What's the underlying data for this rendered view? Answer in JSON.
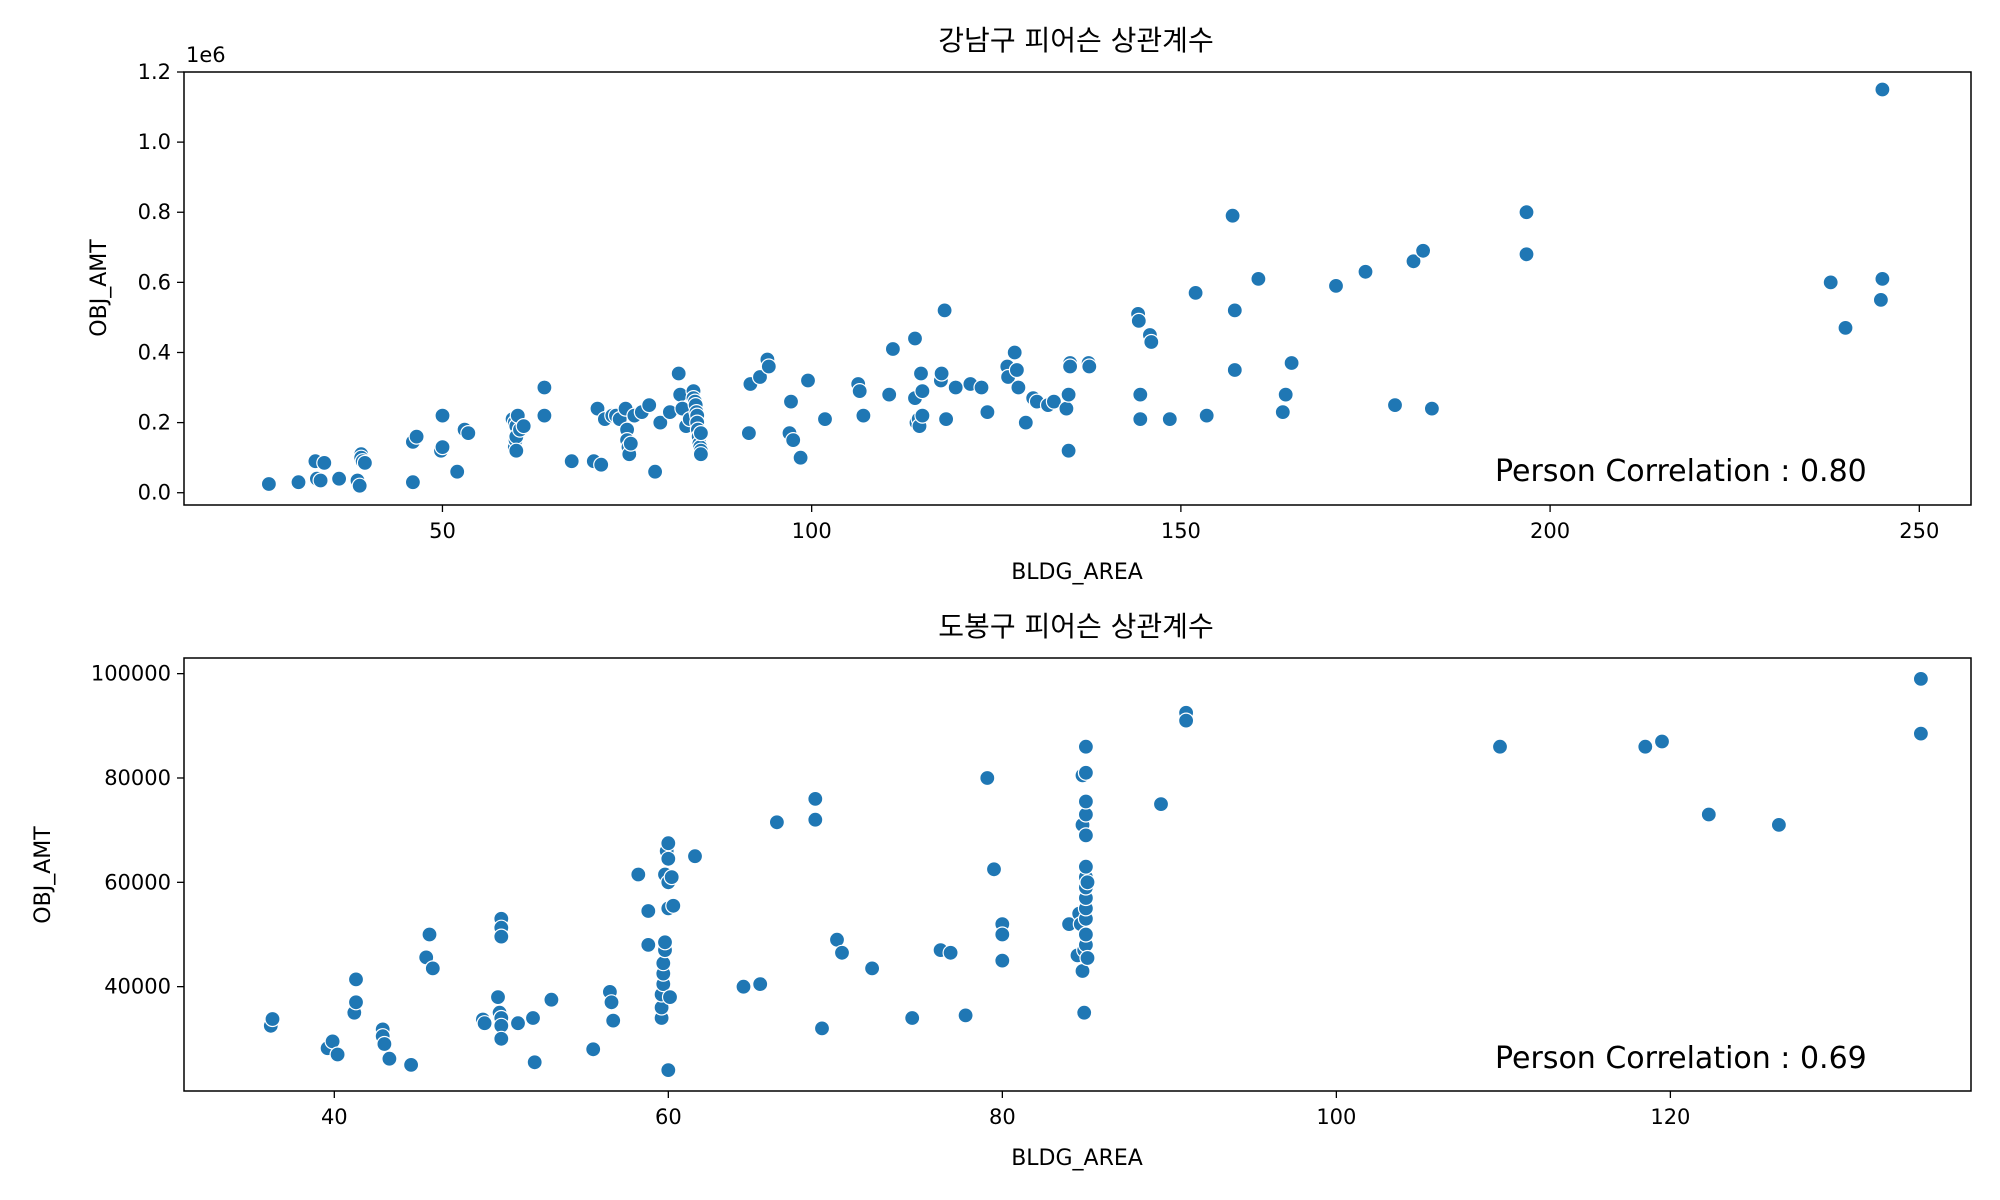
{
  "chart_data": [
    {
      "type": "scatter",
      "title": "강남구 피어슨 상관계수",
      "xlabel": "BLDG_AREA",
      "ylabel": "OBJ_AMT",
      "offset_label": "1e6",
      "annotation": "Person Correlation : 0.80",
      "xlim": [
        15,
        257
      ],
      "ylim": [
        -0.035,
        1.2
      ],
      "xticks": [
        50,
        100,
        150,
        200,
        250
      ],
      "xtick_labels": [
        "50",
        "100",
        "150",
        "200",
        "250"
      ],
      "yticks": [
        0.0,
        0.2,
        0.4,
        0.6,
        0.8,
        1.0,
        1.2
      ],
      "ytick_labels": [
        "0.0",
        "0.2",
        "0.4",
        "0.6",
        "0.8",
        "1.0",
        "1.2"
      ],
      "grid": false,
      "color": "#1f77b4",
      "points": [
        [
          26.5,
          0.025
        ],
        [
          30.5,
          0.03
        ],
        [
          32.8,
          0.09
        ],
        [
          33,
          0.04
        ],
        [
          33.5,
          0.035
        ],
        [
          34,
          0.085
        ],
        [
          36,
          0.04
        ],
        [
          38.5,
          0.035
        ],
        [
          38.8,
          0.02
        ],
        [
          39,
          0.11
        ],
        [
          39,
          0.1
        ],
        [
          39.2,
          0.09
        ],
        [
          39.5,
          0.085
        ],
        [
          46,
          0.03
        ],
        [
          46,
          0.145
        ],
        [
          46.5,
          0.16
        ],
        [
          49.8,
          0.12
        ],
        [
          50,
          0.13
        ],
        [
          50,
          0.22
        ],
        [
          52,
          0.06
        ],
        [
          53,
          0.18
        ],
        [
          53.5,
          0.17
        ],
        [
          59.5,
          0.21
        ],
        [
          59.8,
          0.2
        ],
        [
          59.8,
          0.13
        ],
        [
          59.9,
          0.15
        ],
        [
          60,
          0.19
        ],
        [
          60,
          0.16
        ],
        [
          60,
          0.12
        ],
        [
          60.2,
          0.22
        ],
        [
          60.5,
          0.18
        ],
        [
          61,
          0.19
        ],
        [
          63.8,
          0.3
        ],
        [
          63.8,
          0.22
        ],
        [
          67.5,
          0.09
        ],
        [
          70.5,
          0.09
        ],
        [
          71,
          0.24
        ],
        [
          71.5,
          0.08
        ],
        [
          72,
          0.21
        ],
        [
          73,
          0.22
        ],
        [
          73.5,
          0.22
        ],
        [
          74,
          0.21
        ],
        [
          74.8,
          0.24
        ],
        [
          75,
          0.18
        ],
        [
          75,
          0.15
        ],
        [
          75.2,
          0.13
        ],
        [
          75.3,
          0.11
        ],
        [
          75.5,
          0.14
        ],
        [
          76,
          0.22
        ],
        [
          77,
          0.23
        ],
        [
          78,
          0.25
        ],
        [
          78.8,
          0.06
        ],
        [
          79.5,
          0.2
        ],
        [
          80.8,
          0.23
        ],
        [
          82,
          0.34
        ],
        [
          82.2,
          0.28
        ],
        [
          82.5,
          0.24
        ],
        [
          83,
          0.19
        ],
        [
          83.5,
          0.21
        ],
        [
          84,
          0.29
        ],
        [
          84,
          0.27
        ],
        [
          84.2,
          0.26
        ],
        [
          84.3,
          0.25
        ],
        [
          84.4,
          0.23
        ],
        [
          84.5,
          0.22
        ],
        [
          84.5,
          0.2
        ],
        [
          84.6,
          0.18
        ],
        [
          84.7,
          0.16
        ],
        [
          84.8,
          0.14
        ],
        [
          84.9,
          0.13
        ],
        [
          85,
          0.12
        ],
        [
          85,
          0.11
        ],
        [
          85,
          0.17
        ],
        [
          91.5,
          0.17
        ],
        [
          91.7,
          0.31
        ],
        [
          93,
          0.33
        ],
        [
          94,
          0.38
        ],
        [
          94.2,
          0.36
        ],
        [
          97,
          0.17
        ],
        [
          97.2,
          0.26
        ],
        [
          97.5,
          0.15
        ],
        [
          98.5,
          0.1
        ],
        [
          99.5,
          0.32
        ],
        [
          101.8,
          0.21
        ],
        [
          106.3,
          0.31
        ],
        [
          106.5,
          0.29
        ],
        [
          107,
          0.22
        ],
        [
          110.5,
          0.28
        ],
        [
          111,
          0.41
        ],
        [
          114,
          0.44
        ],
        [
          114,
          0.27
        ],
        [
          114.2,
          0.2
        ],
        [
          114.5,
          0.21
        ],
        [
          114.6,
          0.19
        ],
        [
          114.8,
          0.34
        ],
        [
          115,
          0.22
        ],
        [
          115,
          0.29
        ],
        [
          117.5,
          0.32
        ],
        [
          117.6,
          0.34
        ],
        [
          118,
          0.52
        ],
        [
          118.2,
          0.21
        ],
        [
          119.5,
          0.3
        ],
        [
          121.5,
          0.31
        ],
        [
          123,
          0.3
        ],
        [
          123.8,
          0.23
        ],
        [
          126.5,
          0.36
        ],
        [
          126.6,
          0.33
        ],
        [
          127.5,
          0.4
        ],
        [
          127.8,
          0.35
        ],
        [
          128,
          0.3
        ],
        [
          129,
          0.2
        ],
        [
          130,
          0.27
        ],
        [
          130.5,
          0.26
        ],
        [
          132,
          0.25
        ],
        [
          132.8,
          0.26
        ],
        [
          134.5,
          0.24
        ],
        [
          134.8,
          0.28
        ],
        [
          134.8,
          0.12
        ],
        [
          135,
          0.37
        ],
        [
          135,
          0.36
        ],
        [
          137.5,
          0.37
        ],
        [
          137.6,
          0.36
        ],
        [
          144.2,
          0.51
        ],
        [
          144.3,
          0.49
        ],
        [
          144.5,
          0.28
        ],
        [
          144.5,
          0.21
        ],
        [
          145.8,
          0.45
        ],
        [
          146,
          0.43
        ],
        [
          148.5,
          0.21
        ],
        [
          152,
          0.57
        ],
        [
          153.5,
          0.22
        ],
        [
          157,
          0.79
        ],
        [
          157.3,
          0.52
        ],
        [
          157.3,
          0.35
        ],
        [
          160.5,
          0.61
        ],
        [
          163.8,
          0.23
        ],
        [
          164.2,
          0.28
        ],
        [
          165,
          0.37
        ],
        [
          171,
          0.59
        ],
        [
          175,
          0.63
        ],
        [
          179,
          0.25
        ],
        [
          181.5,
          0.66
        ],
        [
          182.8,
          0.69
        ],
        [
          184,
          0.24
        ],
        [
          196.8,
          0.8
        ],
        [
          196.8,
          0.68
        ],
        [
          238,
          0.6
        ],
        [
          240,
          0.47
        ],
        [
          244.8,
          0.55
        ],
        [
          245,
          0.61
        ],
        [
          245,
          1.15
        ]
      ]
    },
    {
      "type": "scatter",
      "title": "도봉구 피어슨 상관계수",
      "xlabel": "BLDG_AREA",
      "ylabel": "OBJ_AMT",
      "annotation": "Person Correlation : 0.69",
      "xlim": [
        31,
        138
      ],
      "ylim": [
        20000,
        103000
      ],
      "xticks": [
        40,
        60,
        80,
        100,
        120
      ],
      "xtick_labels": [
        "40",
        "60",
        "80",
        "100",
        "120"
      ],
      "yticks": [
        40000,
        60000,
        80000,
        100000
      ],
      "ytick_labels": [
        "40000",
        "60000",
        "80000",
        "100000"
      ],
      "grid": false,
      "color": "#1f77b4",
      "points": [
        [
          36.2,
          32500
        ],
        [
          36.3,
          33800
        ],
        [
          39.6,
          28200
        ],
        [
          39.9,
          29500
        ],
        [
          40.2,
          27000
        ],
        [
          41.2,
          35000
        ],
        [
          41.3,
          37000
        ],
        [
          41.3,
          41400
        ],
        [
          42.9,
          31800
        ],
        [
          42.9,
          30500
        ],
        [
          43,
          29000
        ],
        [
          43.3,
          26200
        ],
        [
          44.6,
          25000
        ],
        [
          45.5,
          45600
        ],
        [
          45.7,
          50000
        ],
        [
          45.9,
          43500
        ],
        [
          48.9,
          33700
        ],
        [
          49,
          33000
        ],
        [
          49.8,
          38000
        ],
        [
          49.9,
          35000
        ],
        [
          50,
          34000
        ],
        [
          50,
          32500
        ],
        [
          50,
          30000
        ],
        [
          50,
          53000
        ],
        [
          50,
          51300
        ],
        [
          50,
          49600
        ],
        [
          51,
          33000
        ],
        [
          51.9,
          34000
        ],
        [
          52,
          25500
        ],
        [
          53,
          37500
        ],
        [
          55.5,
          28000
        ],
        [
          56.5,
          39000
        ],
        [
          56.6,
          37000
        ],
        [
          56.7,
          33500
        ],
        [
          58.2,
          61500
        ],
        [
          58.8,
          54500
        ],
        [
          58.8,
          48000
        ],
        [
          59.6,
          34000
        ],
        [
          59.6,
          36000
        ],
        [
          59.6,
          38500
        ],
        [
          59.7,
          40500
        ],
        [
          59.7,
          42500
        ],
        [
          59.7,
          44500
        ],
        [
          59.8,
          47000
        ],
        [
          59.8,
          48500
        ],
        [
          59.8,
          61500
        ],
        [
          59.9,
          66000
        ],
        [
          60,
          67500
        ],
        [
          60,
          64500
        ],
        [
          60,
          60000
        ],
        [
          60,
          55000
        ],
        [
          60,
          24000
        ],
        [
          60.1,
          38000
        ],
        [
          60.2,
          61000
        ],
        [
          60.3,
          55500
        ],
        [
          61.6,
          65000
        ],
        [
          64.5,
          40000
        ],
        [
          65.5,
          40500
        ],
        [
          66.5,
          71500
        ],
        [
          68.8,
          76000
        ],
        [
          68.8,
          72000
        ],
        [
          69.2,
          32000
        ],
        [
          70.1,
          49000
        ],
        [
          70.4,
          46500
        ],
        [
          72.2,
          43500
        ],
        [
          74.6,
          34000
        ],
        [
          76.3,
          47000
        ],
        [
          76.9,
          46500
        ],
        [
          77.8,
          34500
        ],
        [
          79.1,
          80000
        ],
        [
          79.5,
          62500
        ],
        [
          80,
          52000
        ],
        [
          80,
          50000
        ],
        [
          80,
          45000
        ],
        [
          84,
          52000
        ],
        [
          84.5,
          46000
        ],
        [
          84.6,
          54000
        ],
        [
          84.7,
          52000
        ],
        [
          84.8,
          71000
        ],
        [
          84.8,
          80500
        ],
        [
          84.8,
          43000
        ],
        [
          84.9,
          35000
        ],
        [
          84.9,
          47000
        ],
        [
          85,
          48000
        ],
        [
          85,
          50000
        ],
        [
          85,
          53000
        ],
        [
          85,
          55000
        ],
        [
          85,
          57000
        ],
        [
          85,
          59000
        ],
        [
          85,
          61000
        ],
        [
          85,
          63000
        ],
        [
          85,
          69000
        ],
        [
          85,
          73000
        ],
        [
          85,
          75500
        ],
        [
          85,
          81000
        ],
        [
          85,
          86000
        ],
        [
          85.1,
          45500
        ],
        [
          85.1,
          60000
        ],
        [
          89.5,
          75000
        ],
        [
          91,
          92500
        ],
        [
          91,
          91000
        ],
        [
          109.8,
          86000
        ],
        [
          118.5,
          86000
        ],
        [
          119.5,
          87000
        ],
        [
          122.3,
          73000
        ],
        [
          126.5,
          71000
        ],
        [
          135,
          99000
        ],
        [
          135,
          88500
        ]
      ]
    }
  ]
}
